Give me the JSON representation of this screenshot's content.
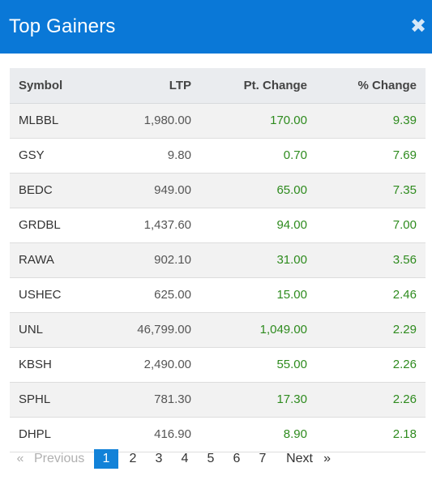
{
  "modal": {
    "title": "Top Gainers",
    "close_glyph": "✖",
    "close_icon": "close-icon"
  },
  "table": {
    "headers": [
      "Symbol",
      "LTP",
      "Pt. Change",
      "% Change"
    ],
    "rows": [
      {
        "symbol": "MLBBL",
        "ltp": "1,980.00",
        "pt_change": "170.00",
        "pct_change": "9.39"
      },
      {
        "symbol": "GSY",
        "ltp": "9.80",
        "pt_change": "0.70",
        "pct_change": "7.69"
      },
      {
        "symbol": "BEDC",
        "ltp": "949.00",
        "pt_change": "65.00",
        "pct_change": "7.35"
      },
      {
        "symbol": "GRDBL",
        "ltp": "1,437.60",
        "pt_change": "94.00",
        "pct_change": "7.00"
      },
      {
        "symbol": "RAWA",
        "ltp": "902.10",
        "pt_change": "31.00",
        "pct_change": "3.56"
      },
      {
        "symbol": "USHEC",
        "ltp": "625.00",
        "pt_change": "15.00",
        "pct_change": "2.46"
      },
      {
        "symbol": "UNL",
        "ltp": "46,799.00",
        "pt_change": "1,049.00",
        "pct_change": "2.29"
      },
      {
        "symbol": "KBSH",
        "ltp": "2,490.00",
        "pt_change": "55.00",
        "pct_change": "2.26"
      },
      {
        "symbol": "SPHL",
        "ltp": "781.30",
        "pt_change": "17.30",
        "pct_change": "2.26"
      },
      {
        "symbol": "DHPL",
        "ltp": "416.90",
        "pt_change": "8.90",
        "pct_change": "2.18"
      }
    ]
  },
  "pagination": {
    "prev_arrow": "«",
    "prev_label": "Previous",
    "pages": [
      "1",
      "2",
      "3",
      "4",
      "5",
      "6",
      "7"
    ],
    "active_page": "1",
    "next_label": "Next",
    "next_arrow": "»"
  },
  "colors": {
    "header_bg": "#0a78d7",
    "positive": "#2e8b1e",
    "active_page_bg": "#1282d8"
  }
}
